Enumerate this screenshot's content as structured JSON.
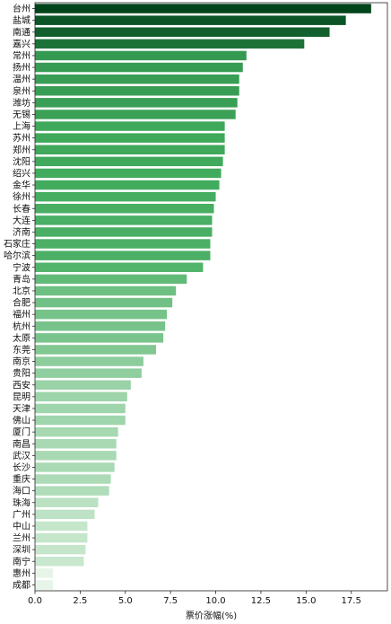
{
  "chart_data": {
    "type": "bar",
    "orientation": "horizontal",
    "title": "",
    "xlabel": "票价涨幅(%)",
    "ylabel": "",
    "xlim": [
      0,
      19.5
    ],
    "x_ticks": [
      "0.0",
      "2.5",
      "5.0",
      "7.5",
      "10.0",
      "12.5",
      "15.0",
      "17.5"
    ],
    "grid": false,
    "legend": "none",
    "colormap": "Greens (dark = highest)",
    "categories": [
      "台州",
      "盐城",
      "南通",
      "嘉兴",
      "常州",
      "扬州",
      "温州",
      "泉州",
      "潍坊",
      "无锡",
      "上海",
      "苏州",
      "郑州",
      "沈阳",
      "绍兴",
      "金华",
      "徐州",
      "长春",
      "大连",
      "济南",
      "石家庄",
      "哈尔滨",
      "宁波",
      "青岛",
      "北京",
      "合肥",
      "福州",
      "杭州",
      "太原",
      "东莞",
      "南京",
      "贵阳",
      "西安",
      "昆明",
      "天津",
      "佛山",
      "厦门",
      "南昌",
      "武汉",
      "长沙",
      "重庆",
      "海口",
      "珠海",
      "广州",
      "中山",
      "兰州",
      "深圳",
      "南宁",
      "惠州",
      "成都"
    ],
    "values": [
      18.6,
      17.2,
      16.3,
      14.9,
      11.7,
      11.5,
      11.3,
      11.3,
      11.2,
      11.1,
      10.5,
      10.5,
      10.5,
      10.4,
      10.3,
      10.2,
      10.0,
      9.9,
      9.8,
      9.8,
      9.7,
      9.7,
      9.3,
      8.4,
      7.8,
      7.6,
      7.3,
      7.2,
      7.1,
      6.7,
      6.0,
      5.9,
      5.3,
      5.1,
      5.0,
      5.0,
      4.6,
      4.5,
      4.5,
      4.4,
      4.2,
      4.1,
      3.5,
      3.3,
      2.9,
      2.9,
      2.8,
      2.7,
      1.0,
      1.0
    ]
  }
}
